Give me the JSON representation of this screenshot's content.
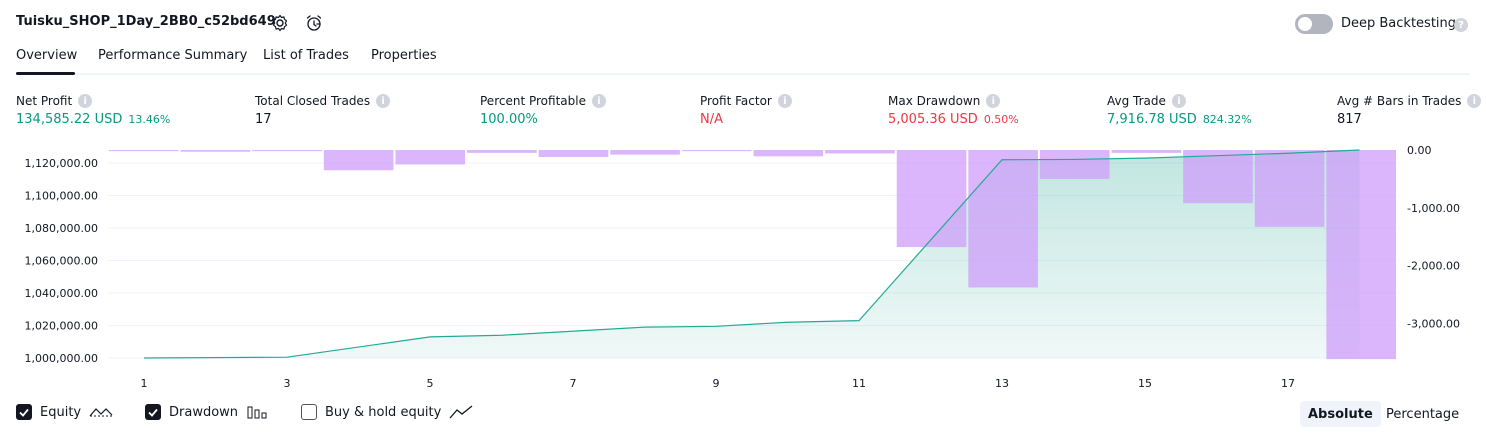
{
  "header": {
    "title": "Tuisku_SHOP_1Day_2BB0_c52bd649",
    "settings_icon": "gear-icon",
    "alert_icon": "alarm-clock-icon",
    "deep_backtesting_label": "Deep Backtesting",
    "deep_backtesting_on": false
  },
  "tabs": [
    {
      "label": "Overview",
      "active": true
    },
    {
      "label": "Performance Summary"
    },
    {
      "label": "List of Trades"
    },
    {
      "label": "Properties"
    }
  ],
  "metrics": {
    "net_profit": {
      "label": "Net Profit",
      "value": "134,585.22 USD",
      "sub": "13.46%"
    },
    "total_closed_trades": {
      "label": "Total Closed Trades",
      "value": "17"
    },
    "percent_profitable": {
      "label": "Percent Profitable",
      "value": "100.00%"
    },
    "profit_factor": {
      "label": "Profit Factor",
      "value": "N/A"
    },
    "max_drawdown": {
      "label": "Max Drawdown",
      "value": "5,005.36 USD",
      "sub": "0.50%"
    },
    "avg_trade": {
      "label": "Avg Trade",
      "value": "7,916.78 USD",
      "sub": "824.32%"
    },
    "avg_bars": {
      "label": "Avg # Bars in Trades",
      "value": "817"
    }
  },
  "chart_data": {
    "type": "line",
    "x_ticks": [
      "1",
      "3",
      "5",
      "7",
      "9",
      "11",
      "13",
      "15",
      "17"
    ],
    "left_ticks": [
      "1,120,000.00",
      "1,100,000.00",
      "1,080,000.00",
      "1,060,000.00",
      "1,040,000.00",
      "1,020,000.00",
      "1,000,000.00"
    ],
    "right_ticks": [
      "0.00",
      "-1,000.00",
      "-2,000.00",
      "-3,000.00"
    ],
    "left_ylim": [
      1000000,
      1128000
    ],
    "right_ylim": [
      -3600,
      0
    ],
    "equity_x": [
      1,
      3,
      5,
      6,
      8,
      9,
      10,
      11,
      13,
      14,
      15,
      16,
      17,
      18
    ],
    "equity": [
      1000000,
      1000500,
      1013000,
      1014000,
      1019000,
      1019500,
      1022000,
      1023000,
      1122000,
      1122200,
      1123000,
      1124500,
      1126000,
      1128000
    ],
    "drawdown": [
      -20,
      -30,
      -20,
      -350,
      -250,
      -50,
      -120,
      -80,
      -20,
      -110,
      -60,
      -1680,
      -2380,
      -500,
      -50,
      -920,
      -1330,
      -3620
    ],
    "colors": {
      "equity_line": "#22ab94",
      "equity_fill": "#089981",
      "drawdown": "#cf9dfb",
      "overlap": "#a9b6e5",
      "grid": "#f0f3fa"
    }
  },
  "legend": [
    {
      "label": "Equity",
      "checked": true,
      "icon": "equity-line-icon"
    },
    {
      "label": "Drawdown",
      "checked": true,
      "icon": "drawdown-bars-icon"
    },
    {
      "label": "Buy & hold equity",
      "checked": false,
      "icon": "buy-hold-line-icon"
    }
  ],
  "mode": {
    "absolute": "Absolute",
    "percentage": "Percentage",
    "active": "absolute"
  }
}
